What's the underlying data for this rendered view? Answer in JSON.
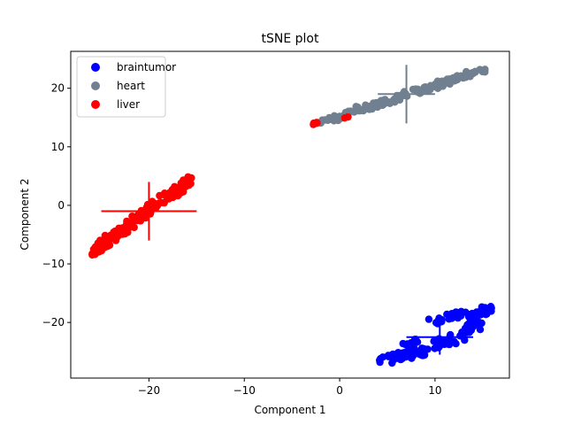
{
  "chart_data": {
    "type": "scatter",
    "title": "tSNE plot",
    "xlabel": "Component 1",
    "ylabel": "Component 2",
    "xlim": [
      -28.2,
      17.8
    ],
    "ylim": [
      -29.5,
      26.3
    ],
    "xticks": [
      -20,
      -10,
      0,
      10
    ],
    "yticks": [
      -20,
      -10,
      0,
      10,
      20
    ],
    "xtick_labels": [
      "−20",
      "−10",
      "0",
      "10"
    ],
    "ytick_labels": [
      "−20",
      "−10",
      "0",
      "10",
      "20"
    ],
    "grid": false,
    "legend_position": "top-left",
    "series": [
      {
        "name": "braintumor",
        "color": "#0000ff",
        "segments": [
          {
            "x0": 4.5,
            "x1": 9.0,
            "y0": -26.5,
            "y1": -24.8,
            "n": 55,
            "jitter": 0.7
          },
          {
            "x0": 6.5,
            "x1": 8.5,
            "y0": -24.8,
            "y1": -22.5,
            "n": 10,
            "jitter": 0.6
          },
          {
            "x0": 9.5,
            "x1": 15.5,
            "y0": -20.0,
            "y1": -18.0,
            "n": 40,
            "jitter": 0.8
          },
          {
            "x0": 10.5,
            "x1": 14.5,
            "y0": -24.0,
            "y1": -20.5,
            "n": 35,
            "jitter": 0.8
          },
          {
            "x0": 13.0,
            "x1": 15.5,
            "y0": -21.5,
            "y1": -17.5,
            "n": 15,
            "jitter": 0.6
          }
        ],
        "center": [
          10.5,
          -22.5
        ],
        "spread": {
          "xmin": 7.0,
          "xmax": 14.0,
          "ymin": -25.5,
          "ymax": -19.5
        }
      },
      {
        "name": "heart",
        "color": "#708090",
        "segments": [
          {
            "x0": -1.5,
            "x1": 15.0,
            "y0": 14.5,
            "y1": 23.0,
            "n": 150,
            "jitter": 0.5
          }
        ],
        "center": [
          7.0,
          19.0
        ],
        "spread": {
          "xmin": 4.0,
          "xmax": 10.0,
          "ymin": 14.0,
          "ymax": 24.0
        }
      },
      {
        "name": "liver",
        "color": "#ff0000",
        "segments": [
          {
            "x0": -26.0,
            "x1": -15.5,
            "y0": -8.0,
            "y1": 4.5,
            "n": 150,
            "jitter": 0.6
          },
          {
            "x0": -3.0,
            "x1": -2.2,
            "y0": 13.8,
            "y1": 14.2,
            "n": 4,
            "jitter": 0.1
          },
          {
            "x0": 0.3,
            "x1": 0.9,
            "y0": 14.8,
            "y1": 15.1,
            "n": 2,
            "jitter": 0.1
          }
        ],
        "center": [
          -20.0,
          -1.0
        ],
        "spread": {
          "xmin": -25.0,
          "xmax": -15.0,
          "ymin": -6.0,
          "ymax": 4.0
        }
      }
    ]
  }
}
